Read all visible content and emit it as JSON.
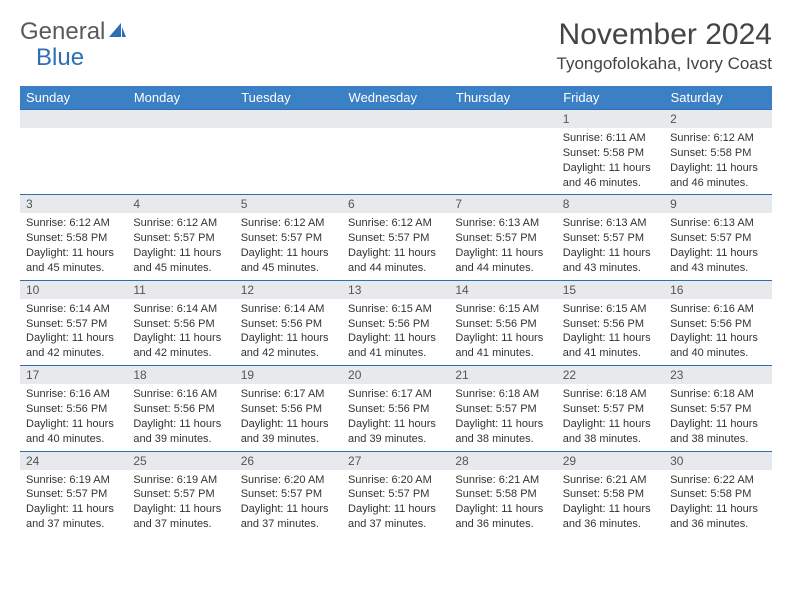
{
  "logo": {
    "text_gray": "General",
    "text_blue": "Blue"
  },
  "title": "November 2024",
  "location": "Tyongofolokaha, Ivory Coast",
  "colors": {
    "header_bg": "#3b7fc4",
    "header_text": "#ffffff",
    "border": "#2e6fb4",
    "daynum_bg": "#e7e9ec",
    "daynum_text": "#555555",
    "body_text": "#333333",
    "logo_gray": "#5a5a5a",
    "logo_blue": "#2e6fb4",
    "page_bg": "#ffffff"
  },
  "day_names": [
    "Sunday",
    "Monday",
    "Tuesday",
    "Wednesday",
    "Thursday",
    "Friday",
    "Saturday"
  ],
  "weeks": [
    [
      {
        "num": "",
        "sunrise": "",
        "sunset": "",
        "daylight": ""
      },
      {
        "num": "",
        "sunrise": "",
        "sunset": "",
        "daylight": ""
      },
      {
        "num": "",
        "sunrise": "",
        "sunset": "",
        "daylight": ""
      },
      {
        "num": "",
        "sunrise": "",
        "sunset": "",
        "daylight": ""
      },
      {
        "num": "",
        "sunrise": "",
        "sunset": "",
        "daylight": ""
      },
      {
        "num": "1",
        "sunrise": "Sunrise: 6:11 AM",
        "sunset": "Sunset: 5:58 PM",
        "daylight": "Daylight: 11 hours and 46 minutes."
      },
      {
        "num": "2",
        "sunrise": "Sunrise: 6:12 AM",
        "sunset": "Sunset: 5:58 PM",
        "daylight": "Daylight: 11 hours and 46 minutes."
      }
    ],
    [
      {
        "num": "3",
        "sunrise": "Sunrise: 6:12 AM",
        "sunset": "Sunset: 5:58 PM",
        "daylight": "Daylight: 11 hours and 45 minutes."
      },
      {
        "num": "4",
        "sunrise": "Sunrise: 6:12 AM",
        "sunset": "Sunset: 5:57 PM",
        "daylight": "Daylight: 11 hours and 45 minutes."
      },
      {
        "num": "5",
        "sunrise": "Sunrise: 6:12 AM",
        "sunset": "Sunset: 5:57 PM",
        "daylight": "Daylight: 11 hours and 45 minutes."
      },
      {
        "num": "6",
        "sunrise": "Sunrise: 6:12 AM",
        "sunset": "Sunset: 5:57 PM",
        "daylight": "Daylight: 11 hours and 44 minutes."
      },
      {
        "num": "7",
        "sunrise": "Sunrise: 6:13 AM",
        "sunset": "Sunset: 5:57 PM",
        "daylight": "Daylight: 11 hours and 44 minutes."
      },
      {
        "num": "8",
        "sunrise": "Sunrise: 6:13 AM",
        "sunset": "Sunset: 5:57 PM",
        "daylight": "Daylight: 11 hours and 43 minutes."
      },
      {
        "num": "9",
        "sunrise": "Sunrise: 6:13 AM",
        "sunset": "Sunset: 5:57 PM",
        "daylight": "Daylight: 11 hours and 43 minutes."
      }
    ],
    [
      {
        "num": "10",
        "sunrise": "Sunrise: 6:14 AM",
        "sunset": "Sunset: 5:57 PM",
        "daylight": "Daylight: 11 hours and 42 minutes."
      },
      {
        "num": "11",
        "sunrise": "Sunrise: 6:14 AM",
        "sunset": "Sunset: 5:56 PM",
        "daylight": "Daylight: 11 hours and 42 minutes."
      },
      {
        "num": "12",
        "sunrise": "Sunrise: 6:14 AM",
        "sunset": "Sunset: 5:56 PM",
        "daylight": "Daylight: 11 hours and 42 minutes."
      },
      {
        "num": "13",
        "sunrise": "Sunrise: 6:15 AM",
        "sunset": "Sunset: 5:56 PM",
        "daylight": "Daylight: 11 hours and 41 minutes."
      },
      {
        "num": "14",
        "sunrise": "Sunrise: 6:15 AM",
        "sunset": "Sunset: 5:56 PM",
        "daylight": "Daylight: 11 hours and 41 minutes."
      },
      {
        "num": "15",
        "sunrise": "Sunrise: 6:15 AM",
        "sunset": "Sunset: 5:56 PM",
        "daylight": "Daylight: 11 hours and 41 minutes."
      },
      {
        "num": "16",
        "sunrise": "Sunrise: 6:16 AM",
        "sunset": "Sunset: 5:56 PM",
        "daylight": "Daylight: 11 hours and 40 minutes."
      }
    ],
    [
      {
        "num": "17",
        "sunrise": "Sunrise: 6:16 AM",
        "sunset": "Sunset: 5:56 PM",
        "daylight": "Daylight: 11 hours and 40 minutes."
      },
      {
        "num": "18",
        "sunrise": "Sunrise: 6:16 AM",
        "sunset": "Sunset: 5:56 PM",
        "daylight": "Daylight: 11 hours and 39 minutes."
      },
      {
        "num": "19",
        "sunrise": "Sunrise: 6:17 AM",
        "sunset": "Sunset: 5:56 PM",
        "daylight": "Daylight: 11 hours and 39 minutes."
      },
      {
        "num": "20",
        "sunrise": "Sunrise: 6:17 AM",
        "sunset": "Sunset: 5:56 PM",
        "daylight": "Daylight: 11 hours and 39 minutes."
      },
      {
        "num": "21",
        "sunrise": "Sunrise: 6:18 AM",
        "sunset": "Sunset: 5:57 PM",
        "daylight": "Daylight: 11 hours and 38 minutes."
      },
      {
        "num": "22",
        "sunrise": "Sunrise: 6:18 AM",
        "sunset": "Sunset: 5:57 PM",
        "daylight": "Daylight: 11 hours and 38 minutes."
      },
      {
        "num": "23",
        "sunrise": "Sunrise: 6:18 AM",
        "sunset": "Sunset: 5:57 PM",
        "daylight": "Daylight: 11 hours and 38 minutes."
      }
    ],
    [
      {
        "num": "24",
        "sunrise": "Sunrise: 6:19 AM",
        "sunset": "Sunset: 5:57 PM",
        "daylight": "Daylight: 11 hours and 37 minutes."
      },
      {
        "num": "25",
        "sunrise": "Sunrise: 6:19 AM",
        "sunset": "Sunset: 5:57 PM",
        "daylight": "Daylight: 11 hours and 37 minutes."
      },
      {
        "num": "26",
        "sunrise": "Sunrise: 6:20 AM",
        "sunset": "Sunset: 5:57 PM",
        "daylight": "Daylight: 11 hours and 37 minutes."
      },
      {
        "num": "27",
        "sunrise": "Sunrise: 6:20 AM",
        "sunset": "Sunset: 5:57 PM",
        "daylight": "Daylight: 11 hours and 37 minutes."
      },
      {
        "num": "28",
        "sunrise": "Sunrise: 6:21 AM",
        "sunset": "Sunset: 5:58 PM",
        "daylight": "Daylight: 11 hours and 36 minutes."
      },
      {
        "num": "29",
        "sunrise": "Sunrise: 6:21 AM",
        "sunset": "Sunset: 5:58 PM",
        "daylight": "Daylight: 11 hours and 36 minutes."
      },
      {
        "num": "30",
        "sunrise": "Sunrise: 6:22 AM",
        "sunset": "Sunset: 5:58 PM",
        "daylight": "Daylight: 11 hours and 36 minutes."
      }
    ]
  ]
}
